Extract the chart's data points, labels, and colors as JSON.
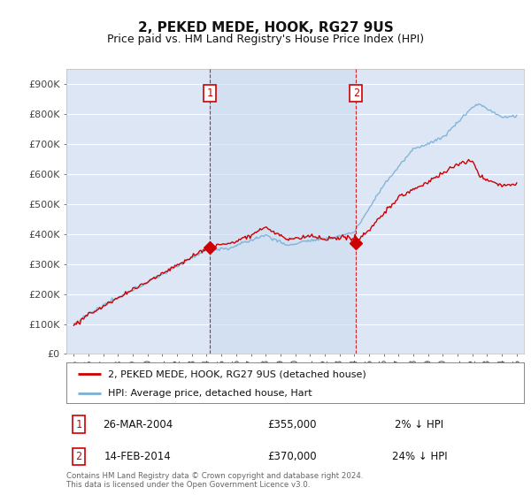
{
  "title": "2, PEKED MEDE, HOOK, RG27 9US",
  "subtitle": "Price paid vs. HM Land Registry's House Price Index (HPI)",
  "ylim": [
    0,
    950000
  ],
  "yticks": [
    0,
    100000,
    200000,
    300000,
    400000,
    500000,
    600000,
    700000,
    800000,
    900000
  ],
  "ytick_labels": [
    "£0",
    "£100K",
    "£200K",
    "£300K",
    "£400K",
    "£500K",
    "£600K",
    "£700K",
    "£800K",
    "£900K"
  ],
  "background_color": "#ffffff",
  "plot_bg_color": "#dce6f5",
  "plot_bg_highlight": "#ccdcf0",
  "grid_color": "#ffffff",
  "legend_label_red": "2, PEKED MEDE, HOOK, RG27 9US (detached house)",
  "legend_label_blue": "HPI: Average price, detached house, Hart",
  "marker1_year": 2004.23,
  "marker1_value": 355000,
  "marker2_year": 2014.12,
  "marker2_value": 370000,
  "marker1_date_str": "26-MAR-2004",
  "marker1_price_str": "£355,000",
  "marker1_hpi_str": "2% ↓ HPI",
  "marker2_date_str": "14-FEB-2014",
  "marker2_price_str": "£370,000",
  "marker2_hpi_str": "24% ↓ HPI",
  "footer": "Contains HM Land Registry data © Crown copyright and database right 2024.\nThis data is licensed under the Open Government Licence v3.0.",
  "red_color": "#cc0000",
  "blue_color": "#7ab0d4",
  "marker_box_color": "#cc0000",
  "xmin": 1994.5,
  "xmax": 2025.5
}
